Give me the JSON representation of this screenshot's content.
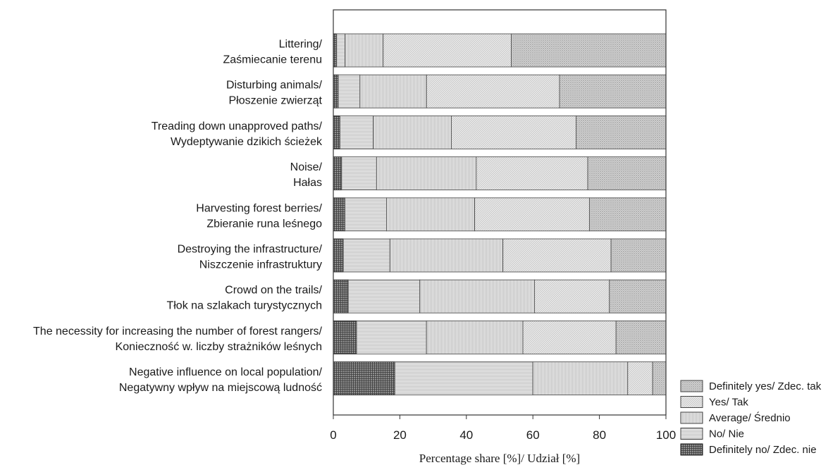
{
  "chart_data": {
    "type": "bar",
    "orientation": "horizontal",
    "stacked": true,
    "xlabel": "Percentage share [%]/ Udział [%]",
    "xlim": [
      0,
      100
    ],
    "xticks": [
      "0",
      "20",
      "40",
      "60",
      "80",
      "100"
    ],
    "grid": false,
    "legend_position": "bottom-right",
    "categories": [
      [
        "Littering/",
        "Zaśmiecanie terenu"
      ],
      [
        "Disturbing animals/",
        "Płoszenie zwierząt"
      ],
      [
        "Treading down unapproved paths/",
        "Wydeptywanie dzikich ścieżek"
      ],
      [
        "Noise/",
        "Hałas"
      ],
      [
        "Harvesting forest berries/",
        "Zbieranie runa leśnego"
      ],
      [
        "Destroying the infrastructure/",
        "Niszczenie infrastruktury"
      ],
      [
        "Crowd on the trails/",
        "Tłok na szlakach turystycznych"
      ],
      [
        "The necessity for increasing the number of forest rangers/",
        "Konieczność w. liczby strażników leśnych"
      ],
      [
        "Negative influence on local population/",
        "Negatywny wpływ na miejscową ludność"
      ]
    ],
    "series": [
      {
        "name": "Definitely no/ Zdec. nie",
        "pattern": "crosshatch",
        "values": [
          1.0,
          1.5,
          2.0,
          2.5,
          3.5,
          3.0,
          4.5,
          7.0,
          18.5
        ]
      },
      {
        "name": "No/ Nie",
        "pattern": "horizontal",
        "values": [
          2.5,
          6.5,
          10.0,
          10.5,
          12.5,
          14.0,
          21.5,
          21.0,
          41.5
        ]
      },
      {
        "name": "Average/ Średnio",
        "pattern": "vertical",
        "values": [
          11.5,
          20.0,
          23.5,
          30.0,
          26.5,
          34.0,
          34.5,
          29.0,
          28.5
        ]
      },
      {
        "name": "Yes/ Tak",
        "pattern": "diagonal",
        "values": [
          38.5,
          40.0,
          37.5,
          33.5,
          34.5,
          32.5,
          22.5,
          28.0,
          7.5
        ]
      },
      {
        "name": "Definitely yes/ Zdec. tak",
        "pattern": "diagonal-dense",
        "values": [
          46.5,
          32.0,
          27.0,
          23.5,
          23.0,
          16.5,
          17.0,
          15.0,
          4.0
        ]
      }
    ],
    "legend": [
      "Definitely yes/ Zdec. tak",
      "Yes/ Tak",
      "Average/ Średnio",
      "No/ Nie",
      "Definitely no/ Zdec. nie"
    ],
    "colors": {
      "bar_fill": "#e3e3e3",
      "bar_stroke": "#555555",
      "dark_fill": "#8a8a8a",
      "frame": "#333333"
    }
  }
}
